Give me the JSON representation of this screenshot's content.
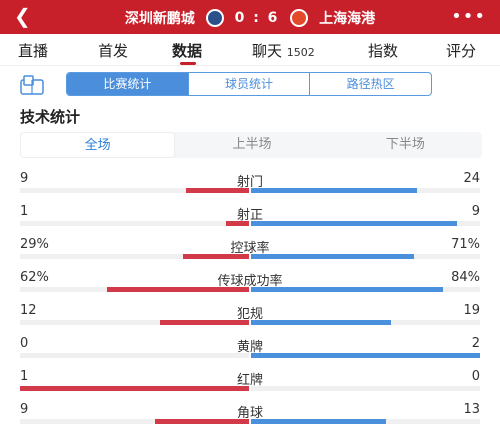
{
  "header": {
    "back_icon": "back-arrow-icon",
    "home_team": "深圳新鹏城",
    "score": "0 : 6",
    "away_team": "上海海港",
    "more_icon": "more-dots-icon"
  },
  "tabs": [
    {
      "label": "直播",
      "count": ""
    },
    {
      "label": "首发",
      "count": ""
    },
    {
      "label": "数据",
      "count": ""
    },
    {
      "label": "聊天",
      "count": "1502"
    },
    {
      "label": "指数",
      "count": ""
    },
    {
      "label": "评分",
      "count": ""
    }
  ],
  "subtabs": [
    "比赛统计",
    "球员统计",
    "路径热区"
  ],
  "section_title": "技术统计",
  "periods": [
    "全场",
    "上半场",
    "下半场"
  ],
  "stats": [
    {
      "name": "射门",
      "home": "9",
      "away": "24",
      "home_frac": 0.273,
      "away_frac": 0.727
    },
    {
      "name": "射正",
      "home": "1",
      "away": "9",
      "home_frac": 0.1,
      "away_frac": 0.9
    },
    {
      "name": "控球率",
      "home": "29%",
      "away": "71%",
      "home_frac": 0.29,
      "away_frac": 0.71
    },
    {
      "name": "传球成功率",
      "home": "62%",
      "away": "84%",
      "home_frac": 0.62,
      "away_frac": 0.84
    },
    {
      "name": "犯规",
      "home": "12",
      "away": "19",
      "home_frac": 0.387,
      "away_frac": 0.613
    },
    {
      "name": "黄牌",
      "home": "0",
      "away": "2",
      "home_frac": 0.0,
      "away_frac": 1.0
    },
    {
      "name": "红牌",
      "home": "1",
      "away": "0",
      "home_frac": 1.0,
      "away_frac": 0.0
    },
    {
      "name": "角球",
      "home": "9",
      "away": "13",
      "home_frac": 0.409,
      "away_frac": 0.591
    }
  ],
  "colors": {
    "header": "#c8202a",
    "home_bar": "#d23a4a",
    "away_bar": "#4a90dc",
    "accent": "#4a8edc"
  }
}
